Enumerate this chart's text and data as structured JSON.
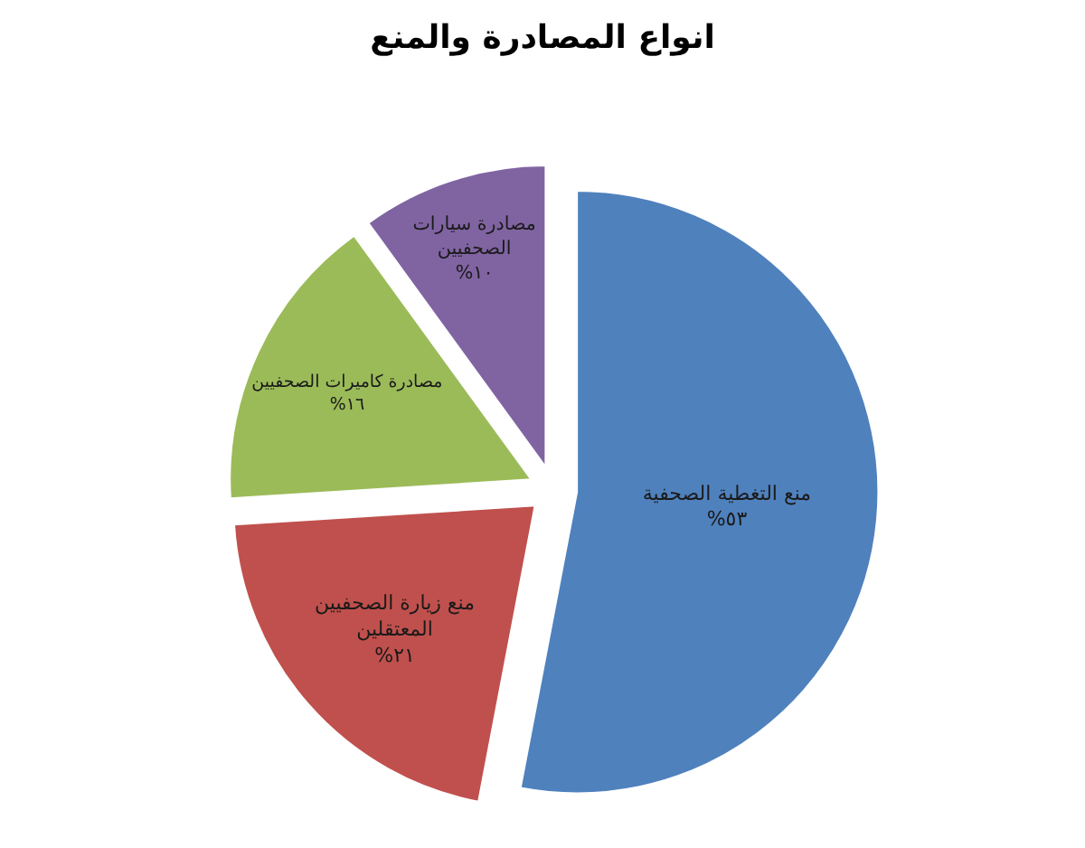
{
  "chart_data": {
    "type": "pie",
    "title": "انواع المصادرة والمنع",
    "categories": [
      "منع التغطية الصحفية",
      "منع زيارة الصحفيين المعتقلين",
      "مصادرة كاميرات الصحفيين",
      "مصادرة سيارات الصحفيين"
    ],
    "values": [
      53,
      21,
      16,
      10
    ],
    "value_labels": [
      "%٥٣",
      "%٢١",
      "%١٦",
      "%١٠"
    ],
    "colors": [
      "#4f81bd",
      "#c0504d",
      "#9bbb59",
      "#8064a2"
    ]
  }
}
